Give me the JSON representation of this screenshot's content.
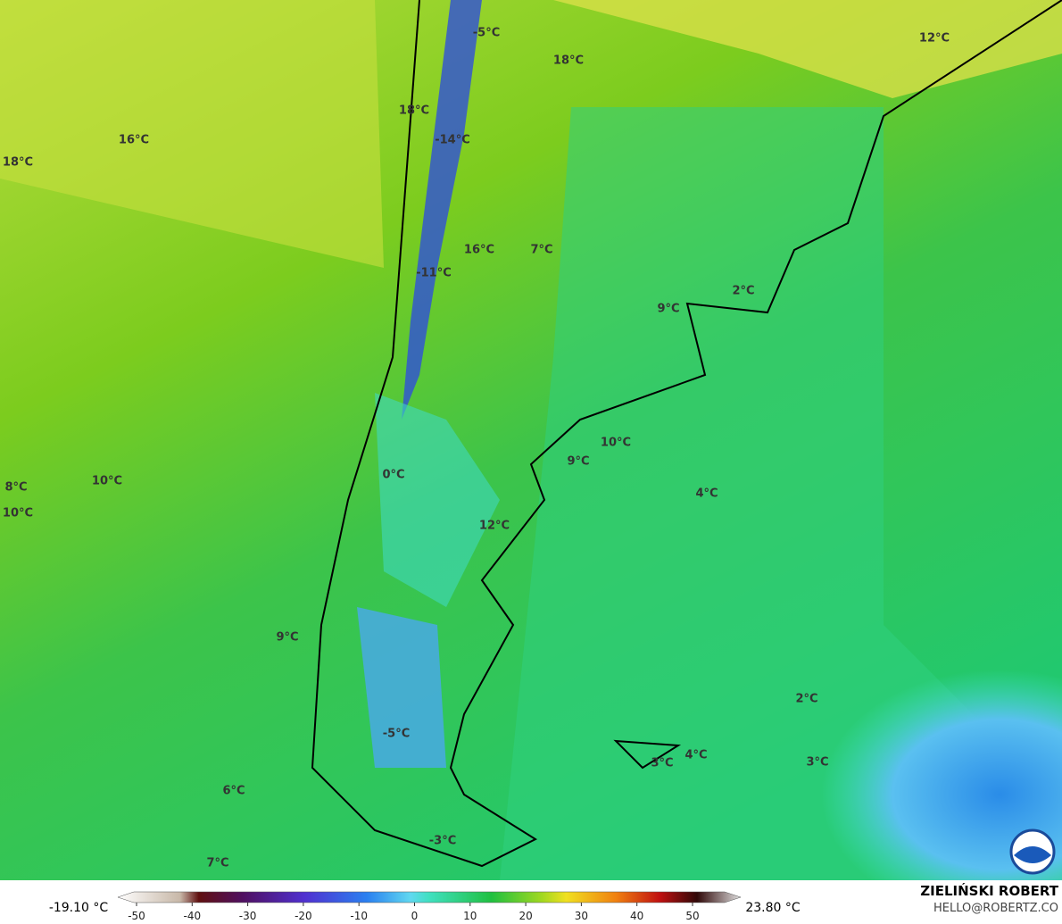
{
  "map": {
    "labels": [
      "-5°C",
      "18°C",
      "12°C",
      "18°C",
      "16°C",
      "-14°C",
      "18°C",
      "16°C",
      "7°C",
      "-11°C",
      "2°C",
      "9°C",
      "10°C",
      "9°C",
      "0°C",
      "10°C",
      "8°C",
      "4°C",
      "10°C",
      "12°C",
      "9°C",
      "2°C",
      "-5°C",
      "4°C",
      "3°C",
      "3°C",
      "6°C",
      "-3°C",
      "7°C"
    ]
  },
  "colorbar": {
    "min_label": "-19.10 °C",
    "max_label": "23.80 °C",
    "range": [
      -50,
      50
    ],
    "ticks": [
      -50,
      -40,
      -30,
      -20,
      -10,
      0,
      10,
      20,
      30,
      40,
      50
    ]
  },
  "credit": {
    "name": "ZIELIŃSKI ROBERT",
    "email": "HELLO@ROBERTZ.CO"
  }
}
